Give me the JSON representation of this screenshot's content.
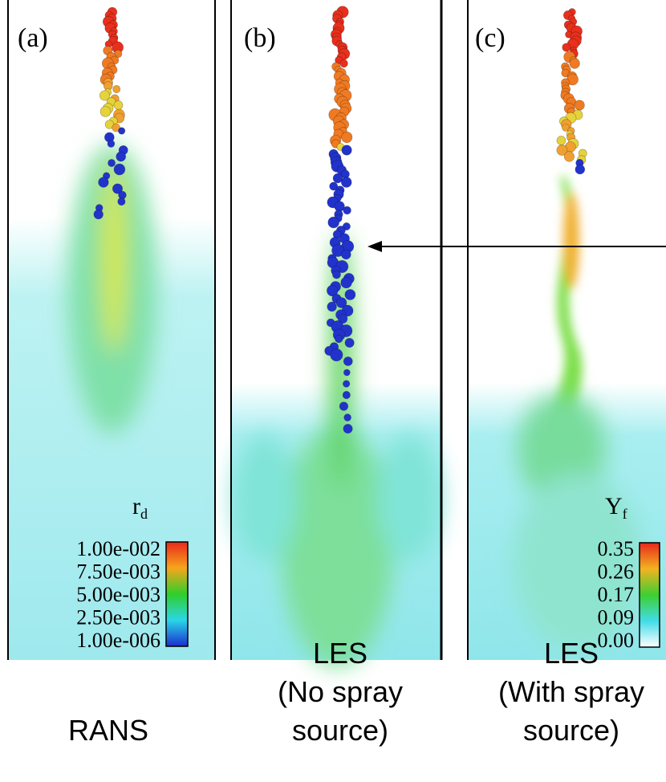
{
  "panels": [
    {
      "label": "(a)",
      "caption": [
        "RANS"
      ]
    },
    {
      "label": "(b)",
      "caption": [
        "LES",
        "(No spray",
        "source)"
      ]
    },
    {
      "label": "(c)",
      "caption": [
        "LES",
        "(With spray",
        "source)"
      ]
    }
  ],
  "colorbars": [
    {
      "symbol": "r",
      "subscript": "d",
      "ticks": [
        "1.00e-002",
        "7.50e-003",
        "5.00e-003",
        "2.50e-003",
        "1.00e-006"
      ]
    },
    {
      "symbol": "Y",
      "subscript": "f",
      "ticks": [
        "0.35",
        "0.26",
        "0.17",
        "0.09",
        "0.00"
      ]
    }
  ]
}
